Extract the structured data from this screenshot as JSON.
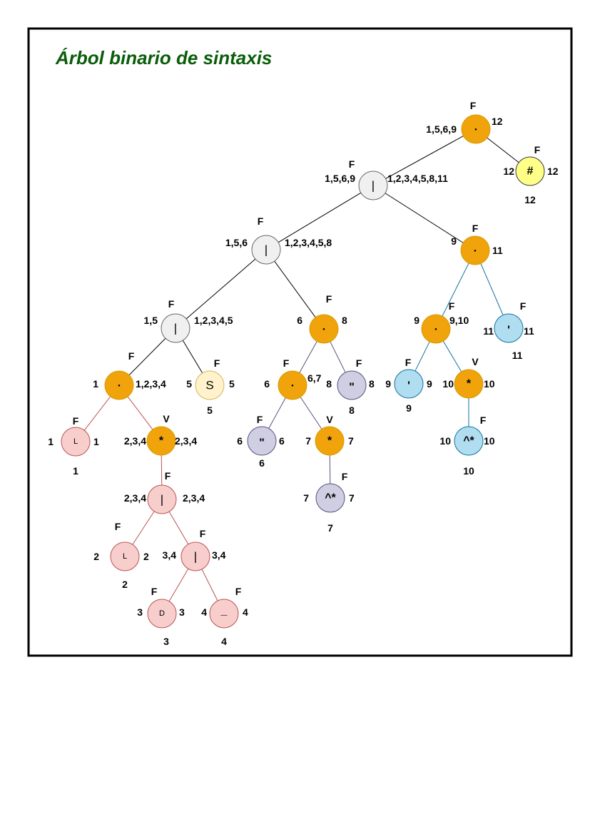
{
  "title": "Árbol binario de sintaxis",
  "colors": {
    "concat": "#f0a30a",
    "gray": "#f0f0f0",
    "red": "#f8cecc",
    "sand": "#fff2cc",
    "purple": "#d0cee2",
    "blue": "#b1ddf0",
    "end": "#ffff88",
    "edge_black": "#000000",
    "edge_red": "#b85450",
    "edge_purple": "#56517e",
    "edge_blue": "#10739e"
  },
  "nodes": [
    {
      "id": "n1",
      "symbol": ".",
      "nullable": "F",
      "firstpos": "1,5,6,9",
      "lastpos": "12",
      "position": "",
      "color": "concat"
    },
    {
      "id": "n2",
      "symbol": "#",
      "nullable": "F",
      "firstpos": "12",
      "lastpos": "12",
      "position": "12",
      "color": "end"
    },
    {
      "id": "n3",
      "symbol": "|",
      "nullable": "F",
      "firstpos": "1,5,6,9",
      "lastpos": "1,2,3,4,5,8,11",
      "position": "",
      "color": "gray"
    },
    {
      "id": "n4",
      "symbol": "|",
      "nullable": "F",
      "firstpos": "1,5,6",
      "lastpos": "1,2,3,4,5,8",
      "position": "",
      "color": "gray"
    },
    {
      "id": "n5",
      "symbol": ".",
      "nullable": "F",
      "firstpos": "9",
      "lastpos": "11",
      "position": "",
      "color": "concat"
    },
    {
      "id": "n6",
      "symbol": "|",
      "nullable": "F",
      "firstpos": "1,5",
      "lastpos": "1,2,3,4,5",
      "position": "",
      "color": "gray"
    },
    {
      "id": "n7",
      "symbol": ".",
      "nullable": "F",
      "firstpos": "6",
      "lastpos": "8",
      "position": "",
      "color": "concat"
    },
    {
      "id": "n8",
      "symbol": ".",
      "nullable": "F",
      "firstpos": "9",
      "lastpos": "9,10",
      "position": "",
      "color": "concat"
    },
    {
      "id": "n9",
      "symbol": "'",
      "nullable": "F",
      "firstpos": "11",
      "lastpos": "11",
      "position": "11",
      "color": "blue"
    },
    {
      "id": "n10",
      "symbol": ".",
      "nullable": "F",
      "firstpos": "1",
      "lastpos": "1,2,3,4",
      "position": "",
      "color": "concat"
    },
    {
      "id": "n11",
      "symbol": "S",
      "nullable": "F",
      "firstpos": "5",
      "lastpos": "5",
      "position": "5",
      "color": "sand"
    },
    {
      "id": "n12",
      "symbol": ".",
      "nullable": "F",
      "firstpos": "6",
      "lastpos": "6,7",
      "position": "",
      "color": "concat"
    },
    {
      "id": "n13",
      "symbol": "\"",
      "nullable": "F",
      "firstpos": "8",
      "lastpos": "8",
      "position": "8",
      "color": "purple"
    },
    {
      "id": "n14",
      "symbol": "'",
      "nullable": "F",
      "firstpos": "9",
      "lastpos": "9",
      "position": "9",
      "color": "blue"
    },
    {
      "id": "n15",
      "symbol": "*",
      "nullable": "V",
      "firstpos": "10",
      "lastpos": "10",
      "position": "",
      "color": "concat"
    },
    {
      "id": "n16",
      "symbol": "L",
      "nullable": "F",
      "firstpos": "1",
      "lastpos": "1",
      "position": "1",
      "color": "red"
    },
    {
      "id": "n17",
      "symbol": "*",
      "nullable": "V",
      "firstpos": "2,3,4",
      "lastpos": "2,3,4",
      "position": "",
      "color": "concat"
    },
    {
      "id": "n18",
      "symbol": "\"",
      "nullable": "F",
      "firstpos": "6",
      "lastpos": "6",
      "position": "6",
      "color": "purple"
    },
    {
      "id": "n19",
      "symbol": "*",
      "nullable": "V",
      "firstpos": "7",
      "lastpos": "7",
      "position": "",
      "color": "concat"
    },
    {
      "id": "n20",
      "symbol": "^*",
      "nullable": "F",
      "firstpos": "10",
      "lastpos": "10",
      "position": "10",
      "color": "blue"
    },
    {
      "id": "n21",
      "symbol": "|",
      "nullable": "F",
      "firstpos": "2,3,4",
      "lastpos": "2,3,4",
      "position": "",
      "color": "red"
    },
    {
      "id": "n22",
      "symbol": "^*",
      "nullable": "F",
      "firstpos": "7",
      "lastpos": "7",
      "position": "7",
      "color": "purple"
    },
    {
      "id": "n23",
      "symbol": "L",
      "nullable": "F",
      "firstpos": "2",
      "lastpos": "2",
      "position": "2",
      "color": "red"
    },
    {
      "id": "n24",
      "symbol": "|",
      "nullable": "F",
      "firstpos": "3,4",
      "lastpos": "3,4",
      "position": "",
      "color": "red"
    },
    {
      "id": "n25",
      "symbol": "D",
      "nullable": "F",
      "firstpos": "3",
      "lastpos": "3",
      "position": "3",
      "color": "red"
    },
    {
      "id": "n26",
      "symbol": "_",
      "nullable": "F",
      "firstpos": "4",
      "lastpos": "4",
      "position": "4",
      "color": "red"
    }
  ],
  "edges": [
    {
      "from": "n1",
      "to": "n3",
      "color": "edge_black"
    },
    {
      "from": "n1",
      "to": "n2",
      "color": "edge_black"
    },
    {
      "from": "n3",
      "to": "n4",
      "color": "edge_black"
    },
    {
      "from": "n3",
      "to": "n5",
      "color": "edge_black"
    },
    {
      "from": "n4",
      "to": "n6",
      "color": "edge_black"
    },
    {
      "from": "n4",
      "to": "n7",
      "color": "edge_black"
    },
    {
      "from": "n6",
      "to": "n10",
      "color": "edge_black"
    },
    {
      "from": "n6",
      "to": "n11",
      "color": "edge_black"
    },
    {
      "from": "n5",
      "to": "n8",
      "color": "edge_blue"
    },
    {
      "from": "n5",
      "to": "n9",
      "color": "edge_blue"
    },
    {
      "from": "n8",
      "to": "n14",
      "color": "edge_blue"
    },
    {
      "from": "n8",
      "to": "n15",
      "color": "edge_blue"
    },
    {
      "from": "n15",
      "to": "n20",
      "color": "edge_blue"
    },
    {
      "from": "n7",
      "to": "n12",
      "color": "edge_purple"
    },
    {
      "from": "n7",
      "to": "n13",
      "color": "edge_purple"
    },
    {
      "from": "n12",
      "to": "n18",
      "color": "edge_purple"
    },
    {
      "from": "n12",
      "to": "n19",
      "color": "edge_purple"
    },
    {
      "from": "n19",
      "to": "n22",
      "color": "edge_purple"
    },
    {
      "from": "n10",
      "to": "n16",
      "color": "edge_red"
    },
    {
      "from": "n10",
      "to": "n17",
      "color": "edge_red"
    },
    {
      "from": "n17",
      "to": "n21",
      "color": "edge_red"
    },
    {
      "from": "n21",
      "to": "n23",
      "color": "edge_red"
    },
    {
      "from": "n21",
      "to": "n24",
      "color": "edge_red"
    },
    {
      "from": "n24",
      "to": "n25",
      "color": "edge_red"
    },
    {
      "from": "n24",
      "to": "n26",
      "color": "edge_red"
    }
  ]
}
